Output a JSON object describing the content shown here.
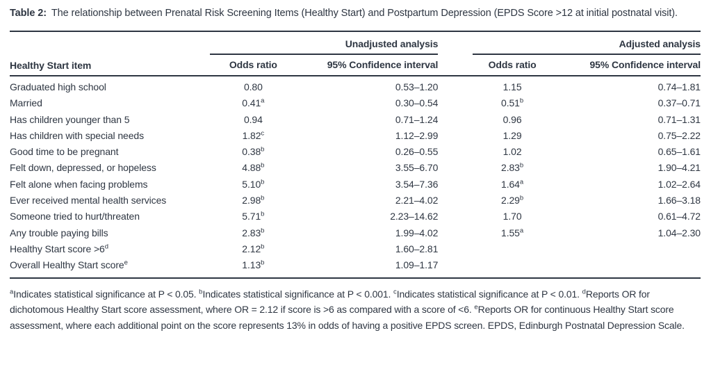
{
  "caption": {
    "label": "Table 2:",
    "text": "The relationship between Prenatal Risk Screening Items (Healthy Start) and Postpartum Depression (EPDS Score >12 at initial postnatal visit)."
  },
  "table": {
    "item_header": "Healthy Start item",
    "groups": [
      {
        "label": "Unadjusted analysis"
      },
      {
        "label": "Adjusted analysis"
      }
    ],
    "subheaders": [
      "Odds ratio",
      "95% Confidence interval",
      "Odds ratio",
      "95% Confidence interval"
    ],
    "rows": [
      {
        "item": "Graduated high school",
        "item_sup": "",
        "u_or": "0.80",
        "u_or_sup": "",
        "u_ci": "0.53–1.20",
        "a_or": "1.15",
        "a_or_sup": "",
        "a_ci": "0.74–1.81"
      },
      {
        "item": "Married",
        "item_sup": "",
        "u_or": "0.41",
        "u_or_sup": "a",
        "u_ci": "0.30–0.54",
        "a_or": "0.51",
        "a_or_sup": "b",
        "a_ci": "0.37–0.71"
      },
      {
        "item": "Has children younger than 5",
        "item_sup": "",
        "u_or": "0.94",
        "u_or_sup": "",
        "u_ci": "0.71–1.24",
        "a_or": "0.96",
        "a_or_sup": "",
        "a_ci": "0.71–1.31"
      },
      {
        "item": "Has children with special needs",
        "item_sup": "",
        "u_or": "1.82",
        "u_or_sup": "c",
        "u_ci": "1.12–2.99",
        "a_or": "1.29",
        "a_or_sup": "",
        "a_ci": "0.75–2.22"
      },
      {
        "item": "Good time to be pregnant",
        "item_sup": "",
        "u_or": "0.38",
        "u_or_sup": "b",
        "u_ci": "0.26–0.55",
        "a_or": "1.02",
        "a_or_sup": "",
        "a_ci": "0.65–1.61"
      },
      {
        "item": "Felt down, depressed, or hopeless",
        "item_sup": "",
        "u_or": "4.88",
        "u_or_sup": "b",
        "u_ci": "3.55–6.70",
        "a_or": "2.83",
        "a_or_sup": "b",
        "a_ci": "1.90–4.21"
      },
      {
        "item": "Felt alone when facing problems",
        "item_sup": "",
        "u_or": "5.10",
        "u_or_sup": "b",
        "u_ci": "3.54–7.36",
        "a_or": "1.64",
        "a_or_sup": "a",
        "a_ci": "1.02–2.64"
      },
      {
        "item": "Ever received mental health services",
        "item_sup": "",
        "u_or": "2.98",
        "u_or_sup": "b",
        "u_ci": "2.21–4.02",
        "a_or": "2.29",
        "a_or_sup": "b",
        "a_ci": "1.66–3.18"
      },
      {
        "item": "Someone tried to hurt/threaten",
        "item_sup": "",
        "u_or": "5.71",
        "u_or_sup": "b",
        "u_ci": "2.23–14.62",
        "a_or": "1.70",
        "a_or_sup": "",
        "a_ci": "0.61–4.72"
      },
      {
        "item": "Any trouble paying bills",
        "item_sup": "",
        "u_or": "2.83",
        "u_or_sup": "b",
        "u_ci": "1.99–4.02",
        "a_or": "1.55",
        "a_or_sup": "a",
        "a_ci": "1.04–2.30"
      },
      {
        "item": "Healthy Start score >6",
        "item_sup": "d",
        "u_or": "2.12",
        "u_or_sup": "b",
        "u_ci": "1.60–2.81",
        "a_or": "",
        "a_or_sup": "",
        "a_ci": ""
      },
      {
        "item": "Overall Healthy Start score",
        "item_sup": "e",
        "u_or": "1.13",
        "u_or_sup": "b",
        "u_ci": "1.09–1.17",
        "a_or": "",
        "a_or_sup": "",
        "a_ci": ""
      }
    ]
  },
  "footnotes": {
    "segments": [
      {
        "sup": "a",
        "text": "Indicates statistical significance at P < 0.05. "
      },
      {
        "sup": "b",
        "text": "Indicates statistical significance at P < 0.001. "
      },
      {
        "sup": "c",
        "text": "Indicates statistical significance at P < 0.01. "
      },
      {
        "sup": "d",
        "text": "Reports OR for dichotomous Healthy Start score assessment, where OR = 2.12 if score is >6 as compared with a score of <6. "
      },
      {
        "sup": "e",
        "text": "Reports OR for continuous Healthy Start score assessment, where each additional point on the score represents 13% in odds of having a positive EPDS screen. EPDS, Edinburgh Postnatal Depression Scale."
      }
    ]
  },
  "colors": {
    "text": "#2e3642",
    "rule": "#2e3642",
    "background": "#ffffff"
  }
}
